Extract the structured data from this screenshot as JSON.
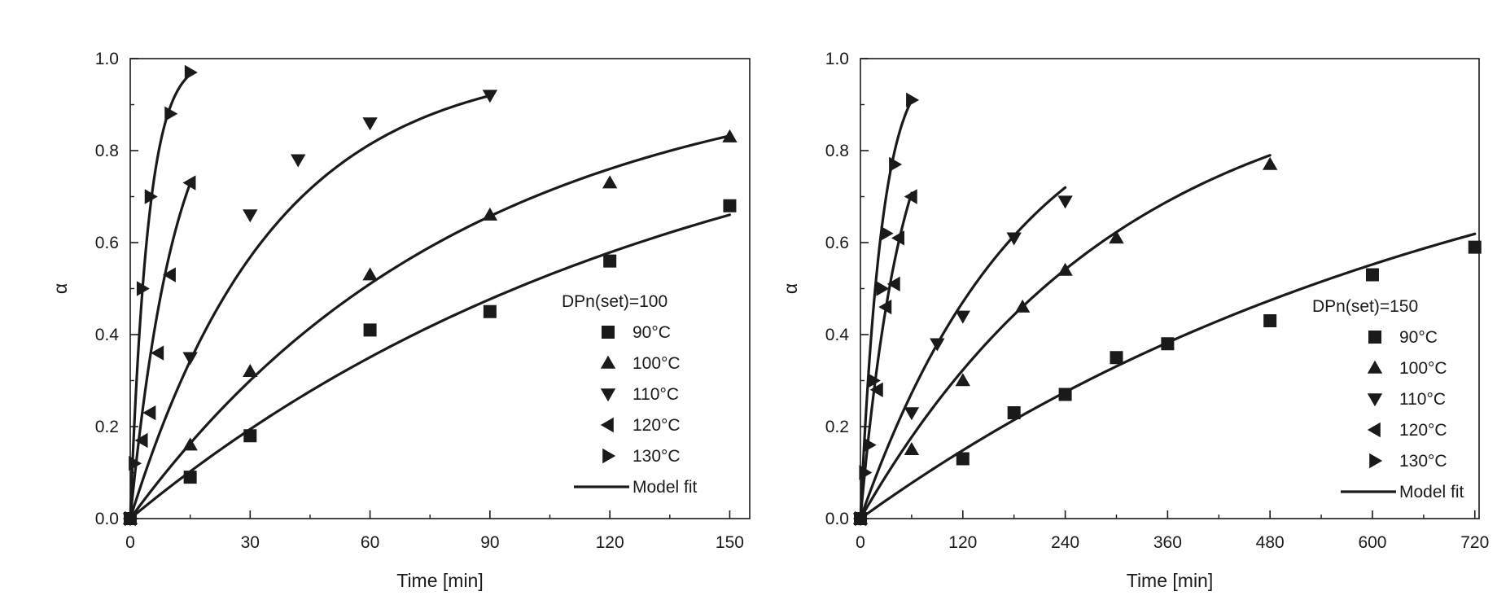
{
  "chart_data": [
    {
      "type": "scatter",
      "legend_title": "DPn(set)=100",
      "xlabel": "Time [min]",
      "ylabel": "α",
      "xlim": [
        0,
        155
      ],
      "ylim": [
        0,
        1.0
      ],
      "xticks": [
        0,
        30,
        60,
        90,
        120,
        150
      ],
      "xtick_labels": [
        "0",
        "30",
        "60",
        "90",
        "120",
        "150"
      ],
      "yticks": [
        0.0,
        0.2,
        0.4,
        0.6,
        0.8,
        1.0
      ],
      "ytick_labels": [
        "0.0",
        "0.2",
        "0.4",
        "0.6",
        "0.8",
        "1.0"
      ],
      "grid": false,
      "legend_position": "center-right",
      "series": [
        {
          "name": "90°C",
          "marker": "square",
          "x": [
            0,
            15,
            30,
            60,
            90,
            120,
            150
          ],
          "y": [
            0.0,
            0.09,
            0.18,
            0.41,
            0.45,
            0.56,
            0.68
          ],
          "fit_x": [
            0,
            150
          ],
          "fit_k": 0.0072
        },
        {
          "name": "100°C",
          "marker": "triangle-up",
          "x": [
            0,
            15,
            30,
            60,
            90,
            120,
            150
          ],
          "y": [
            0.0,
            0.16,
            0.32,
            0.53,
            0.66,
            0.73,
            0.83
          ],
          "fit_x": [
            0,
            150
          ],
          "fit_k": 0.0119
        },
        {
          "name": "110°C",
          "marker": "triangle-down",
          "x": [
            0,
            15,
            30,
            42,
            60,
            90
          ],
          "y": [
            0.0,
            0.35,
            0.66,
            0.78,
            0.86,
            0.92
          ],
          "fit_x": [
            0,
            90
          ],
          "fit_k": 0.028
        },
        {
          "name": "120°C",
          "marker": "triangle-left",
          "x": [
            0,
            3,
            5,
            7,
            10,
            15
          ],
          "y": [
            0.0,
            0.17,
            0.23,
            0.36,
            0.53,
            0.73
          ],
          "fit_x": [
            0,
            15
          ],
          "fit_k": 0.087
        },
        {
          "name": "130°C",
          "marker": "triangle-right",
          "x": [
            0,
            1,
            3,
            5,
            10,
            15
          ],
          "y": [
            0.0,
            0.12,
            0.5,
            0.7,
            0.88,
            0.97
          ],
          "fit_x": [
            0,
            15
          ],
          "fit_k": 0.225
        }
      ],
      "fit_label": "Model fit",
      "sections": [
        {
          "x": 0,
          "y": 0.0
        },
        {
          "x": 30,
          "y": 0.0
        }
      ]
    },
    {
      "type": "scatter",
      "legend_title": "DPn(set)=150",
      "xlabel": "Time [min]",
      "ylabel": "α",
      "xlim": [
        0,
        725
      ],
      "ylim": [
        0,
        1.0
      ],
      "xticks": [
        0,
        120,
        240,
        360,
        480,
        600,
        720
      ],
      "xtick_labels": [
        "0",
        "120",
        "240",
        "360",
        "480",
        "600",
        "720"
      ],
      "yticks": [
        0.0,
        0.2,
        0.4,
        0.6,
        0.8,
        1.0
      ],
      "ytick_labels": [
        "0.0",
        "0.2",
        "0.4",
        "0.6",
        "0.8",
        "1.0"
      ],
      "grid": false,
      "legend_position": "center-right",
      "series": [
        {
          "name": "90°C",
          "marker": "square",
          "x": [
            0,
            120,
            180,
            240,
            300,
            360,
            480,
            600,
            720
          ],
          "y": [
            0.0,
            0.13,
            0.23,
            0.27,
            0.35,
            0.38,
            0.43,
            0.53,
            0.59
          ],
          "fit_x": [
            0,
            720
          ],
          "fit_k": 0.00134
        },
        {
          "name": "100°C",
          "marker": "triangle-up",
          "x": [
            0,
            60,
            120,
            190,
            240,
            300,
            480
          ],
          "y": [
            0.0,
            0.15,
            0.3,
            0.46,
            0.54,
            0.61,
            0.77
          ],
          "fit_x": [
            0,
            480
          ],
          "fit_k": 0.00325
        },
        {
          "name": "110°C",
          "marker": "triangle-down",
          "x": [
            0,
            60,
            90,
            120,
            180,
            240
          ],
          "y": [
            0.0,
            0.23,
            0.38,
            0.44,
            0.61,
            0.69
          ],
          "fit_x": [
            0,
            240
          ],
          "fit_k": 0.0053
        },
        {
          "name": "120°C",
          "marker": "triangle-left",
          "x": [
            0,
            20,
            30,
            40,
            45,
            60
          ],
          "y": [
            0.0,
            0.28,
            0.46,
            0.51,
            0.61,
            0.7
          ],
          "fit_x": [
            0,
            60
          ],
          "fit_k": 0.0205
        },
        {
          "name": "130°C",
          "marker": "triangle-right",
          "x": [
            0,
            5,
            10,
            15,
            25,
            30,
            40,
            60
          ],
          "y": [
            0.0,
            0.1,
            0.16,
            0.3,
            0.5,
            0.62,
            0.77,
            0.91
          ],
          "fit_x": [
            0,
            60
          ],
          "fit_k": 0.04
        }
      ],
      "fit_label": "Model fit"
    }
  ]
}
